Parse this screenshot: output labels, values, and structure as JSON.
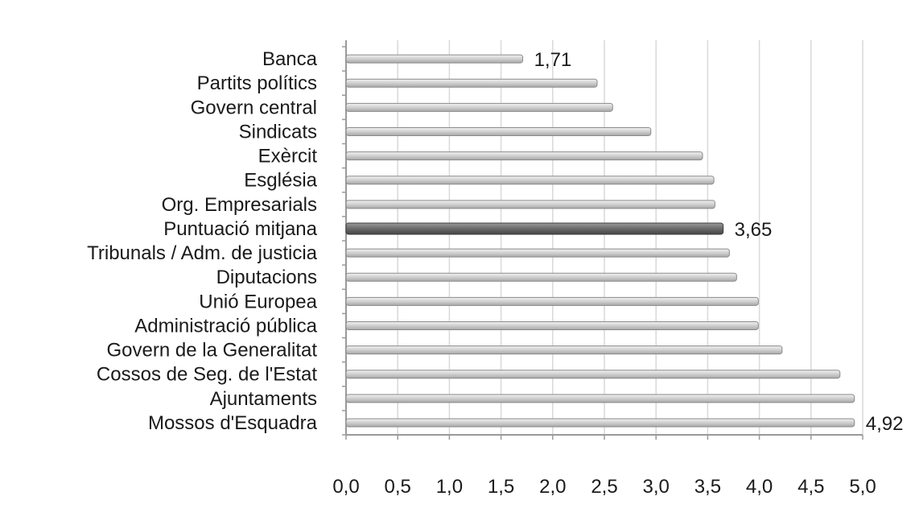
{
  "chart_data": {
    "type": "bar",
    "orientation": "horizontal",
    "categories": [
      "Banca",
      "Partits polítics",
      "Govern central",
      "Sindicats",
      "Exèrcit",
      "Església",
      "Org. Empresarials",
      "Puntuació mitjana",
      "Tribunals / Adm. de justicia",
      "Diputacions",
      "Unió Europea",
      "Administració pública",
      "Govern de la Generalitat",
      "Cossos de Seg. de l'Estat",
      "Ajuntaments",
      "Mossos d'Esquadra"
    ],
    "values": [
      1.71,
      2.43,
      2.58,
      2.95,
      3.45,
      3.56,
      3.57,
      3.65,
      3.71,
      3.78,
      3.99,
      3.99,
      4.22,
      4.78,
      4.92,
      4.92
    ],
    "highlight_category": "Puntuació mitjana",
    "data_labels": [
      {
        "category": "Banca",
        "text": "1,71"
      },
      {
        "category": "Puntuació mitjana",
        "text": "3,65"
      },
      {
        "category": "Mossos d'Esquadra",
        "text": "4,92"
      }
    ],
    "xlim": [
      0,
      5
    ],
    "ticks": [
      0,
      0.5,
      1,
      1.5,
      2,
      2.5,
      3,
      3.5,
      4,
      4.5,
      5
    ],
    "tick_labels": [
      "0,0",
      "0,5",
      "1,0",
      "1,5",
      "2,0",
      "2,5",
      "3,0",
      "3,5",
      "4,0",
      "4,5",
      "5,0"
    ],
    "grid": true,
    "title": "",
    "xlabel": "",
    "ylabel": "",
    "colors": {
      "bar": "#cfcfcf",
      "bar_edge": "#8a8a8a",
      "highlight_bar": "#6a6a6a",
      "highlight_edge": "#3d3d3d",
      "grid": "#d9d9d9",
      "axis": "#9a9a9a"
    }
  }
}
